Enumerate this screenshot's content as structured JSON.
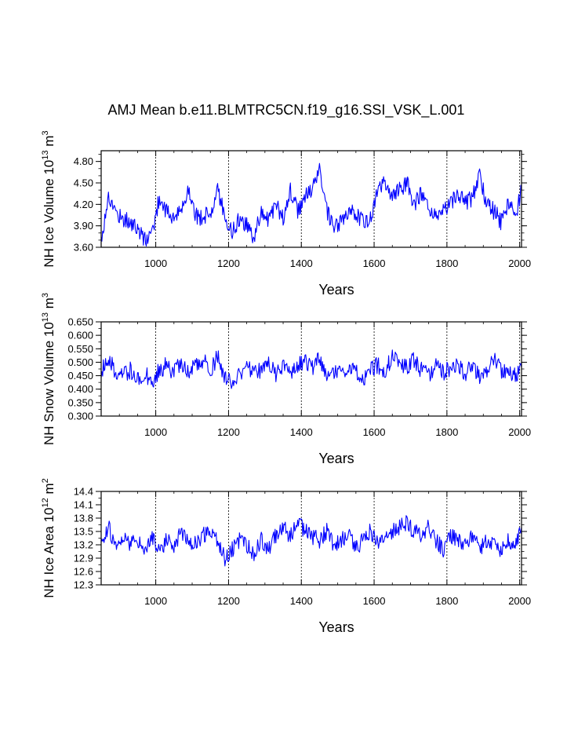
{
  "figure_title": "AMJ Mean b.e11.BLMTRC5CN.f19_g16.SSI_VSK_L.001",
  "colors": {
    "series": "#0000ff",
    "axis": "#000000",
    "grid": "#000000",
    "background": "#ffffff"
  },
  "chart_data": [
    {
      "type": "line",
      "id": "ice-volume",
      "ylabel_main": "NH Ice Volume 10",
      "ylabel_exp": "13",
      "ylabel_unit": " m",
      "ylabel_unit_exp": "3",
      "xlabel": "Years",
      "xlim": [
        850,
        2005
      ],
      "ylim": [
        3.6,
        4.95
      ],
      "yticks": [
        3.6,
        3.9,
        4.2,
        4.5,
        4.8
      ],
      "yticklabels": [
        "3.60",
        "3.90",
        "4.20",
        "4.50",
        "4.80"
      ],
      "yminor": 0.1,
      "xticks": [
        1000,
        1200,
        1400,
        1600,
        1800,
        2000
      ],
      "xticklabels": [
        "1000",
        "1200",
        "1400",
        "1600",
        "1800",
        "2000"
      ],
      "xminor": 50,
      "gridlines_x": [
        1000,
        1200,
        1400,
        1600,
        1800,
        2000
      ],
      "series": [
        {
          "name": "NH Ice Volume",
          "x": [
            850,
            870,
            890,
            910,
            930,
            950,
            970,
            990,
            1010,
            1030,
            1050,
            1070,
            1090,
            1110,
            1130,
            1150,
            1170,
            1190,
            1210,
            1230,
            1250,
            1270,
            1290,
            1310,
            1330,
            1350,
            1370,
            1390,
            1410,
            1430,
            1450,
            1470,
            1490,
            1510,
            1530,
            1550,
            1570,
            1590,
            1610,
            1630,
            1650,
            1670,
            1690,
            1710,
            1730,
            1750,
            1770,
            1790,
            1810,
            1830,
            1850,
            1870,
            1890,
            1910,
            1930,
            1950,
            1970,
            1990,
            2005
          ],
          "y": [
            3.7,
            4.3,
            4.1,
            4.0,
            3.95,
            3.85,
            3.7,
            3.8,
            4.3,
            4.1,
            4.0,
            4.1,
            4.45,
            4.05,
            4.0,
            4.1,
            4.4,
            4.05,
            3.8,
            4.0,
            3.9,
            3.75,
            4.1,
            4.0,
            4.2,
            4.0,
            4.4,
            4.1,
            4.3,
            4.4,
            4.7,
            4.1,
            3.85,
            3.95,
            4.05,
            4.1,
            3.95,
            4.0,
            4.4,
            4.5,
            4.3,
            4.4,
            4.5,
            4.2,
            4.35,
            4.1,
            4.0,
            4.15,
            4.2,
            4.35,
            4.2,
            4.3,
            4.6,
            4.2,
            4.1,
            3.95,
            4.2,
            4.05,
            4.4
          ]
        }
      ]
    },
    {
      "type": "line",
      "id": "snow-volume",
      "ylabel_main": "NH Snow Volume 10",
      "ylabel_exp": "13",
      "ylabel_unit": " m",
      "ylabel_unit_exp": "3",
      "xlabel": "Years",
      "xlim": [
        850,
        2005
      ],
      "ylim": [
        0.3,
        0.65
      ],
      "yticks": [
        0.3,
        0.35,
        0.4,
        0.45,
        0.5,
        0.55,
        0.6,
        0.65
      ],
      "yticklabels": [
        "0.300",
        "0.350",
        "0.400",
        "0.450",
        "0.500",
        "0.550",
        "0.600",
        "0.650"
      ],
      "yminor": 0.025,
      "xticks": [
        1000,
        1200,
        1400,
        1600,
        1800,
        2000
      ],
      "xticklabels": [
        "1000",
        "1200",
        "1400",
        "1600",
        "1800",
        "2000"
      ],
      "xminor": 50,
      "gridlines_x": [
        1000,
        1200,
        1400,
        1600,
        1800,
        2000
      ],
      "series": [
        {
          "name": "NH Snow Volume",
          "x": [
            850,
            870,
            890,
            910,
            930,
            950,
            970,
            990,
            1010,
            1030,
            1050,
            1070,
            1090,
            1110,
            1130,
            1150,
            1170,
            1190,
            1210,
            1230,
            1250,
            1270,
            1290,
            1310,
            1330,
            1350,
            1370,
            1390,
            1410,
            1430,
            1450,
            1470,
            1490,
            1510,
            1530,
            1550,
            1570,
            1590,
            1610,
            1630,
            1650,
            1670,
            1690,
            1710,
            1730,
            1750,
            1770,
            1790,
            1810,
            1830,
            1850,
            1870,
            1890,
            1910,
            1930,
            1950,
            1970,
            1990,
            2005
          ],
          "y": [
            0.47,
            0.52,
            0.46,
            0.45,
            0.47,
            0.44,
            0.46,
            0.43,
            0.47,
            0.49,
            0.46,
            0.5,
            0.47,
            0.48,
            0.51,
            0.47,
            0.52,
            0.44,
            0.42,
            0.45,
            0.48,
            0.46,
            0.47,
            0.5,
            0.45,
            0.48,
            0.46,
            0.49,
            0.5,
            0.48,
            0.51,
            0.46,
            0.47,
            0.45,
            0.48,
            0.46,
            0.44,
            0.47,
            0.49,
            0.47,
            0.52,
            0.5,
            0.48,
            0.51,
            0.47,
            0.45,
            0.49,
            0.46,
            0.48,
            0.5,
            0.46,
            0.48,
            0.45,
            0.47,
            0.52,
            0.46,
            0.47,
            0.45,
            0.48
          ]
        }
      ]
    },
    {
      "type": "line",
      "id": "ice-area",
      "ylabel_main": "NH Ice Area 10",
      "ylabel_exp": "12",
      "ylabel_unit": " m",
      "ylabel_unit_exp": "2",
      "xlabel": "Years",
      "xlim": [
        850,
        2005
      ],
      "ylim": [
        12.3,
        14.4
      ],
      "yticks": [
        12.3,
        12.6,
        12.9,
        13.2,
        13.5,
        13.8,
        14.1,
        14.4
      ],
      "yticklabels": [
        "12.3",
        "12.6",
        "12.9",
        "13.2",
        "13.5",
        "13.8",
        "14.1",
        "14.4"
      ],
      "yminor": 0.15,
      "xticks": [
        1000,
        1200,
        1400,
        1600,
        1800,
        2000
      ],
      "xticklabels": [
        "1000",
        "1200",
        "1400",
        "1600",
        "1800",
        "2000"
      ],
      "xminor": 50,
      "gridlines_x": [
        1000,
        1200,
        1400,
        1600,
        1800,
        2000
      ],
      "series": [
        {
          "name": "NH Ice Area",
          "x": [
            850,
            870,
            890,
            910,
            930,
            950,
            970,
            990,
            1010,
            1030,
            1050,
            1070,
            1090,
            1110,
            1130,
            1150,
            1170,
            1190,
            1210,
            1230,
            1250,
            1270,
            1290,
            1310,
            1330,
            1350,
            1370,
            1390,
            1410,
            1430,
            1450,
            1470,
            1490,
            1510,
            1530,
            1550,
            1570,
            1590,
            1610,
            1630,
            1650,
            1670,
            1690,
            1710,
            1730,
            1750,
            1770,
            1790,
            1810,
            1830,
            1850,
            1870,
            1890,
            1910,
            1930,
            1950,
            1970,
            1990,
            2005
          ],
          "y": [
            13.3,
            13.6,
            13.1,
            13.4,
            13.2,
            13.3,
            13.0,
            13.4,
            13.1,
            13.3,
            13.2,
            13.5,
            13.3,
            13.2,
            13.4,
            13.5,
            13.3,
            12.9,
            13.1,
            13.3,
            13.2,
            13.0,
            13.3,
            13.1,
            13.4,
            13.6,
            13.4,
            13.7,
            13.5,
            13.4,
            13.3,
            13.5,
            13.2,
            13.3,
            13.4,
            13.1,
            13.3,
            13.5,
            13.2,
            13.3,
            13.5,
            13.6,
            13.7,
            13.5,
            13.4,
            13.6,
            13.3,
            13.1,
            13.4,
            13.3,
            13.2,
            13.4,
            13.1,
            13.3,
            13.2,
            13.1,
            13.3,
            13.2,
            13.6
          ]
        }
      ]
    }
  ]
}
